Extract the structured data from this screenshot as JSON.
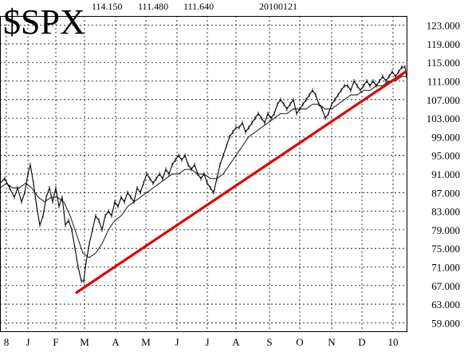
{
  "header": {
    "symbol": "$SPX",
    "high": "114.150",
    "low": "111.480",
    "close": "111.640",
    "date": "20100121"
  },
  "colors": {
    "background": "#ffffff",
    "price": "#000000",
    "trendline": "#e00000",
    "grid": "#000000"
  },
  "chart_data": {
    "type": "line",
    "title": "$SPX",
    "xlabel": "",
    "ylabel": "",
    "ylim": [
      57,
      125
    ],
    "y_ticks": [
      "123.000",
      "119.000",
      "115.000",
      "111.000",
      "107.000",
      "103.000",
      "99.000",
      "95.000",
      "91.000",
      "87.000",
      "83.000",
      "79.000",
      "75.000",
      "71.000",
      "67.000",
      "63.000",
      "59.000"
    ],
    "x_ticks": [
      "8",
      "J",
      "F",
      "M",
      "A",
      "M",
      "J",
      "J",
      "A",
      "S",
      "O",
      "N",
      "D",
      "10"
    ],
    "grid": true,
    "annotations": {
      "trendline": {
        "from": {
          "x": "M",
          "y": 65.5
        },
        "to": {
          "x": "10",
          "y": 113.0
        },
        "color": "#e00000"
      }
    },
    "series": [
      {
        "type": "price",
        "values": [
          [
            0,
            89
          ],
          [
            6,
            90
          ],
          [
            12,
            88
          ],
          [
            18,
            86
          ],
          [
            22,
            88
          ],
          [
            27,
            85
          ],
          [
            31,
            87
          ],
          [
            35,
            91
          ],
          [
            38,
            93
          ],
          [
            42,
            89
          ],
          [
            46,
            84
          ],
          [
            50,
            80
          ],
          [
            54,
            82
          ],
          [
            58,
            86
          ],
          [
            62,
            88
          ],
          [
            66,
            85
          ],
          [
            70,
            88
          ],
          [
            74,
            84
          ],
          [
            78,
            86
          ],
          [
            82,
            80
          ],
          [
            86,
            81
          ],
          [
            90,
            79
          ],
          [
            94,
            75
          ],
          [
            98,
            71
          ],
          [
            102,
            68
          ],
          [
            105,
            68
          ],
          [
            108,
            72
          ],
          [
            112,
            76
          ],
          [
            116,
            79
          ],
          [
            120,
            82
          ],
          [
            124,
            81
          ],
          [
            128,
            79
          ],
          [
            132,
            82
          ],
          [
            136,
            83
          ],
          [
            140,
            82
          ],
          [
            144,
            85
          ],
          [
            148,
            84
          ],
          [
            152,
            86
          ],
          [
            156,
            85
          ],
          [
            160,
            87
          ],
          [
            164,
            86
          ],
          [
            168,
            85
          ],
          [
            172,
            88
          ],
          [
            176,
            87
          ],
          [
            180,
            89
          ],
          [
            184,
            91
          ],
          [
            188,
            90
          ],
          [
            192,
            89
          ],
          [
            196,
            90
          ],
          [
            200,
            91
          ],
          [
            204,
            90
          ],
          [
            208,
            92
          ],
          [
            212,
            91
          ],
          [
            216,
            93
          ],
          [
            220,
            94
          ],
          [
            224,
            95
          ],
          [
            228,
            94
          ],
          [
            232,
            95
          ],
          [
            236,
            93
          ],
          [
            240,
            92
          ],
          [
            244,
            93
          ],
          [
            248,
            91
          ],
          [
            252,
            90
          ],
          [
            256,
            91
          ],
          [
            260,
            89
          ],
          [
            264,
            88
          ],
          [
            268,
            87
          ],
          [
            272,
            90
          ],
          [
            276,
            93
          ],
          [
            280,
            95
          ],
          [
            284,
            97
          ],
          [
            288,
            99
          ],
          [
            292,
            100
          ],
          [
            296,
            101
          ],
          [
            300,
            101
          ],
          [
            304,
            102
          ],
          [
            308,
            100
          ],
          [
            312,
            101
          ],
          [
            316,
            102
          ],
          [
            320,
            103
          ],
          [
            324,
            104
          ],
          [
            328,
            103
          ],
          [
            332,
            102
          ],
          [
            336,
            104
          ],
          [
            340,
            103
          ],
          [
            344,
            104
          ],
          [
            348,
            106
          ],
          [
            352,
            107
          ],
          [
            356,
            106
          ],
          [
            360,
            105
          ],
          [
            364,
            106
          ],
          [
            368,
            107
          ],
          [
            372,
            104
          ],
          [
            376,
            105
          ],
          [
            380,
            106
          ],
          [
            384,
            107
          ],
          [
            388,
            108
          ],
          [
            392,
            109
          ],
          [
            396,
            108
          ],
          [
            400,
            106
          ],
          [
            404,
            105
          ],
          [
            408,
            103
          ],
          [
            412,
            104
          ],
          [
            416,
            106
          ],
          [
            420,
            107
          ],
          [
            424,
            108
          ],
          [
            428,
            109
          ],
          [
            432,
            110
          ],
          [
            436,
            110
          ],
          [
            440,
            109
          ],
          [
            444,
            111
          ],
          [
            448,
            110
          ],
          [
            452,
            109
          ],
          [
            456,
            110
          ],
          [
            460,
            111
          ],
          [
            464,
            110
          ],
          [
            468,
            111
          ],
          [
            472,
            110
          ],
          [
            476,
            111
          ],
          [
            480,
            112
          ],
          [
            484,
            111
          ],
          [
            488,
            112
          ],
          [
            492,
            113
          ],
          [
            496,
            112
          ],
          [
            500,
            113
          ],
          [
            504,
            114
          ],
          [
            508,
            114
          ],
          [
            510,
            112
          ]
        ]
      },
      {
        "type": "moving_average",
        "values": [
          [
            0,
            88
          ],
          [
            8,
            89
          ],
          [
            16,
            88
          ],
          [
            24,
            88
          ],
          [
            32,
            89
          ],
          [
            40,
            88
          ],
          [
            48,
            86
          ],
          [
            56,
            85
          ],
          [
            64,
            86
          ],
          [
            72,
            86
          ],
          [
            80,
            85
          ],
          [
            88,
            82
          ],
          [
            96,
            78
          ],
          [
            104,
            74
          ],
          [
            112,
            73
          ],
          [
            120,
            74
          ],
          [
            128,
            76
          ],
          [
            136,
            79
          ],
          [
            144,
            81
          ],
          [
            152,
            82
          ],
          [
            160,
            84
          ],
          [
            168,
            85
          ],
          [
            176,
            86
          ],
          [
            184,
            87
          ],
          [
            192,
            88
          ],
          [
            200,
            89
          ],
          [
            208,
            90
          ],
          [
            216,
            91
          ],
          [
            224,
            91
          ],
          [
            232,
            92
          ],
          [
            240,
            92
          ],
          [
            248,
            91
          ],
          [
            256,
            91
          ],
          [
            264,
            90
          ],
          [
            272,
            90
          ],
          [
            280,
            91
          ],
          [
            288,
            93
          ],
          [
            296,
            95
          ],
          [
            304,
            97
          ],
          [
            312,
            99
          ],
          [
            320,
            100
          ],
          [
            328,
            101
          ],
          [
            336,
            102
          ],
          [
            344,
            103
          ],
          [
            352,
            104
          ],
          [
            360,
            104
          ],
          [
            368,
            105
          ],
          [
            376,
            105
          ],
          [
            384,
            105
          ],
          [
            392,
            106
          ],
          [
            400,
            106
          ],
          [
            408,
            105
          ],
          [
            416,
            105
          ],
          [
            424,
            106
          ],
          [
            432,
            107
          ],
          [
            440,
            108
          ],
          [
            448,
            108
          ],
          [
            456,
            109
          ],
          [
            464,
            109
          ],
          [
            472,
            110
          ],
          [
            480,
            110
          ],
          [
            488,
            111
          ],
          [
            496,
            111
          ],
          [
            504,
            112
          ],
          [
            510,
            112
          ]
        ]
      }
    ]
  }
}
